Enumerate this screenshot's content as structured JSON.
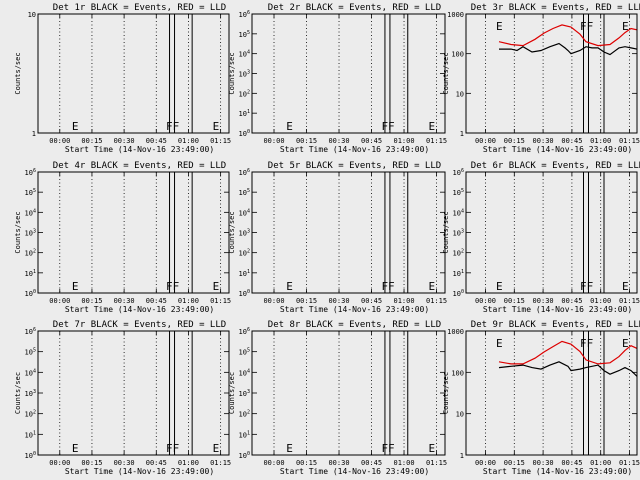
{
  "figure": {
    "background": "#ececec",
    "plot_background": "#ececec",
    "events_color": "#000000",
    "lld_color": "#dd0000"
  },
  "chart_data": [
    {
      "type": "line",
      "title": "Det 1r BLACK = Events, RED = LLD",
      "xlabel": "Start Time (14-Nov-16 23:49:00)",
      "ylabel": "Counts/sec",
      "log_y": true,
      "ylim": [
        1,
        10
      ],
      "ytick_labels": [
        "1",
        "10"
      ],
      "xlim": [
        -11,
        46
      ],
      "xtick_labels": [
        "00:00",
        "00:15",
        "00:30",
        "00:45",
        "01:00",
        "01:15"
      ],
      "grid": "dotted vertical lines",
      "markers": {
        "E": [
          0,
          42
        ],
        "FF": [
          29
        ]
      },
      "series": []
    },
    {
      "type": "line",
      "title": "Det 2r BLACK = Events, RED = LLD",
      "xlabel": "Start Time (14-Nov-16 23:49:00)",
      "ylabel": "Counts/sec",
      "log_y": true,
      "ylim": [
        1,
        1000000
      ],
      "ytick_labels": [
        "10^0",
        "10^1",
        "10^2",
        "10^3",
        "10^4",
        "10^5",
        "10^6"
      ],
      "xlim": [
        -11,
        46
      ],
      "xtick_labels": [
        "00:00",
        "00:15",
        "00:30",
        "00:45",
        "01:00",
        "01:15"
      ],
      "grid": "dotted vertical lines",
      "markers": {
        "E": [
          0,
          42
        ],
        "FF": [
          29
        ]
      },
      "series": []
    },
    {
      "type": "line",
      "title": "Det 3r BLACK = Events, RED = LLD",
      "xlabel": "Start Time (14-Nov-16 23:49:00)",
      "ylabel": "Counts/sec",
      "log_y": true,
      "ylim": [
        1,
        1000
      ],
      "ytick_labels": [
        "1",
        "10",
        "100",
        "1000"
      ],
      "xlim": [
        -11,
        46
      ],
      "xtick_labels": [
        "00:00",
        "00:15",
        "00:30",
        "00:45",
        "01:00",
        "01:15"
      ],
      "grid": "dotted vertical lines",
      "markers": {
        "E": [
          0,
          42
        ],
        "FF": [
          29
        ]
      },
      "series": [
        {
          "color": "#dd0000",
          "x": [
            0,
            4,
            8,
            12,
            15,
            18,
            21,
            24,
            27,
            29,
            33,
            37,
            40,
            42,
            44,
            46
          ],
          "y": [
            200,
            170,
            160,
            230,
            330,
            430,
            530,
            470,
            310,
            200,
            160,
            170,
            250,
            340,
            430,
            400
          ]
        },
        {
          "color": "#000000",
          "x": [
            0,
            4,
            6,
            8,
            11,
            14,
            17,
            20,
            22,
            23,
            24,
            27,
            29,
            31,
            33,
            35,
            37,
            40,
            42,
            44,
            46
          ],
          "y": [
            130,
            130,
            120,
            150,
            110,
            120,
            150,
            180,
            140,
            120,
            100,
            120,
            150,
            140,
            140,
            110,
            95,
            140,
            150,
            140,
            130
          ]
        }
      ]
    },
    {
      "type": "line",
      "title": "Det 4r BLACK = Events, RED = LLD",
      "xlabel": "Start Time (14-Nov-16 23:49:00)",
      "ylabel": "Counts/sec",
      "log_y": true,
      "ylim": [
        1,
        1000000
      ],
      "ytick_labels": [
        "10^0",
        "10^1",
        "10^2",
        "10^3",
        "10^4",
        "10^5",
        "10^6"
      ],
      "xlim": [
        -11,
        46
      ],
      "xtick_labels": [
        "00:00",
        "00:15",
        "00:30",
        "00:45",
        "01:00",
        "01:15"
      ],
      "grid": "dotted vertical lines",
      "markers": {
        "E": [
          0,
          42
        ],
        "FF": [
          29
        ]
      },
      "series": []
    },
    {
      "type": "line",
      "title": "Det 5r BLACK = Events, RED = LLD",
      "xlabel": "Start Time (14-Nov-16 23:49:00)",
      "ylabel": "Counts/sec",
      "log_y": true,
      "ylim": [
        1,
        1000000
      ],
      "ytick_labels": [
        "10^0",
        "10^1",
        "10^2",
        "10^3",
        "10^4",
        "10^5",
        "10^6"
      ],
      "xlim": [
        -11,
        46
      ],
      "xtick_labels": [
        "00:00",
        "00:15",
        "00:30",
        "00:45",
        "01:00",
        "01:15"
      ],
      "grid": "dotted vertical lines",
      "markers": {
        "E": [
          0,
          42
        ],
        "FF": [
          29
        ]
      },
      "series": []
    },
    {
      "type": "line",
      "title": "Det 6r BLACK = Events, RED = LLD",
      "xlabel": "Start Time (14-Nov-16 23:49:00)",
      "ylabel": "Counts/sec",
      "log_y": true,
      "ylim": [
        1,
        1000000
      ],
      "ytick_labels": [
        "10^0",
        "10^1",
        "10^2",
        "10^3",
        "10^4",
        "10^5",
        "10^6"
      ],
      "xlim": [
        -11,
        46
      ],
      "xtick_labels": [
        "00:00",
        "00:15",
        "00:30",
        "00:45",
        "01:00",
        "01:15"
      ],
      "grid": "dotted vertical lines",
      "markers": {
        "E": [
          0,
          42
        ],
        "FF": [
          29
        ]
      },
      "series": []
    },
    {
      "type": "line",
      "title": "Det 7r BLACK = Events, RED = LLD",
      "xlabel": "Start Time (14-Nov-16 23:49:00)",
      "ylabel": "Counts/sec",
      "log_y": true,
      "ylim": [
        1,
        1000000
      ],
      "ytick_labels": [
        "10^0",
        "10^1",
        "10^2",
        "10^3",
        "10^4",
        "10^5",
        "10^6"
      ],
      "xlim": [
        -11,
        46
      ],
      "xtick_labels": [
        "00:00",
        "00:15",
        "00:30",
        "00:45",
        "01:00",
        "01:15"
      ],
      "grid": "dotted vertical lines",
      "markers": {
        "E": [
          0,
          42
        ],
        "FF": [
          29
        ]
      },
      "series": []
    },
    {
      "type": "line",
      "title": "Det 8r BLACK = Events, RED = LLD",
      "xlabel": "Start Time (14-Nov-16 23:49:00)",
      "ylabel": "Counts/sec",
      "log_y": true,
      "ylim": [
        1,
        1000000
      ],
      "ytick_labels": [
        "10^0",
        "10^1",
        "10^2",
        "10^3",
        "10^4",
        "10^5",
        "10^6"
      ],
      "xlim": [
        -11,
        46
      ],
      "xtick_labels": [
        "00:00",
        "00:15",
        "00:30",
        "00:45",
        "01:00",
        "01:15"
      ],
      "grid": "dotted vertical lines",
      "markers": {
        "E": [
          0,
          42
        ],
        "FF": [
          29
        ]
      },
      "series": []
    },
    {
      "type": "line",
      "title": "Det 9r BLACK = Events, RED = LLD",
      "xlabel": "Start Time (14-Nov-16 23:49:00)",
      "ylabel": "Counts/sec",
      "log_y": true,
      "ylim": [
        1,
        1000
      ],
      "ytick_labels": [
        "1",
        "10",
        "100",
        "1000"
      ],
      "xlim": [
        -11,
        46
      ],
      "xtick_labels": [
        "00:00",
        "00:15",
        "00:30",
        "00:45",
        "01:00",
        "01:15"
      ],
      "grid": "dotted vertical lines",
      "markers": {
        "E": [
          0,
          42
        ],
        "FF": [
          29
        ]
      },
      "series": [
        {
          "color": "#dd0000",
          "x": [
            0,
            4,
            8,
            12,
            15,
            18,
            21,
            24,
            27,
            29,
            33,
            37,
            40,
            42,
            44,
            46
          ],
          "y": [
            180,
            160,
            160,
            220,
            310,
            420,
            560,
            480,
            320,
            200,
            160,
            170,
            240,
            340,
            440,
            380
          ]
        },
        {
          "color": "#000000",
          "x": [
            0,
            4,
            8,
            11,
            14,
            17,
            20,
            23,
            24,
            27,
            29,
            33,
            35,
            37,
            40,
            42,
            44,
            46
          ],
          "y": [
            130,
            140,
            150,
            130,
            120,
            150,
            180,
            140,
            110,
            120,
            130,
            150,
            110,
            90,
            110,
            130,
            110,
            80
          ]
        }
      ]
    }
  ]
}
